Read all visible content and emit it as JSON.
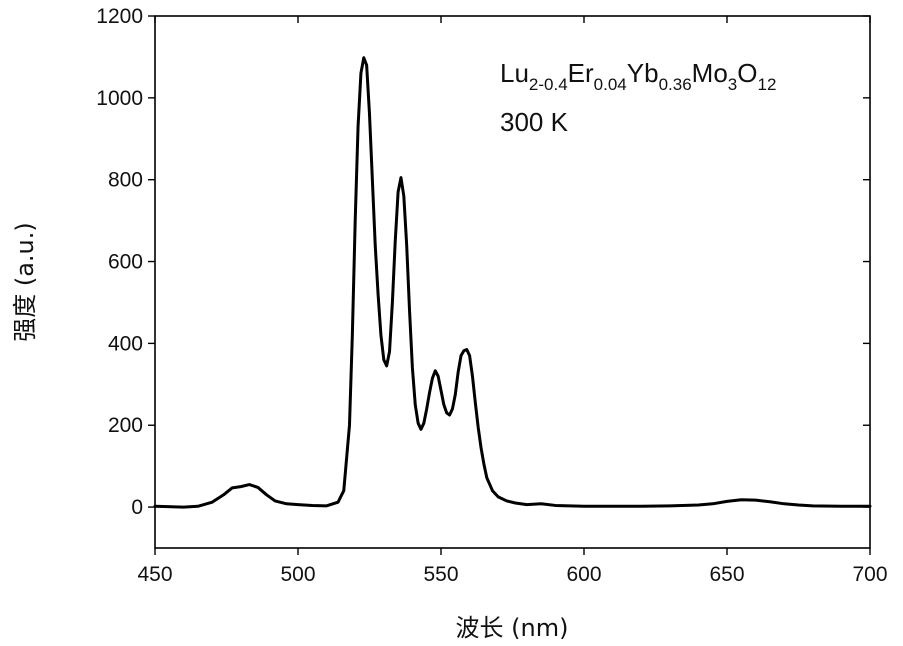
{
  "chart_data": {
    "type": "line",
    "xlabel": "波长 (nm)",
    "ylabel": "强度 (a.u.)",
    "xlim": [
      450,
      700
    ],
    "ylim": [
      -100,
      1200
    ],
    "x_ticks": [
      "450",
      "500",
      "550",
      "600",
      "650",
      "700"
    ],
    "y_ticks": [
      "0",
      "200",
      "400",
      "600",
      "800",
      "1000",
      "1200"
    ],
    "grid": false,
    "annotation": {
      "formula": [
        {
          "text": "Lu",
          "sub": false
        },
        {
          "text": "2-0.4",
          "sub": true
        },
        {
          "text": "Er",
          "sub": false
        },
        {
          "text": "0.04",
          "sub": true
        },
        {
          "text": "Yb",
          "sub": false
        },
        {
          "text": "0.36",
          "sub": true
        },
        {
          "text": "Mo",
          "sub": false
        },
        {
          "text": "3",
          "sub": true
        },
        {
          "text": "O",
          "sub": false
        },
        {
          "text": "12",
          "sub": true
        }
      ],
      "temperature": "300 K"
    },
    "series": [
      {
        "color": "#000000",
        "points": [
          [
            450,
            2
          ],
          [
            460,
            0
          ],
          [
            465,
            2
          ],
          [
            470,
            12
          ],
          [
            474,
            30
          ],
          [
            477,
            47
          ],
          [
            480,
            50
          ],
          [
            483,
            55
          ],
          [
            486,
            48
          ],
          [
            489,
            30
          ],
          [
            492,
            15
          ],
          [
            496,
            8
          ],
          [
            500,
            6
          ],
          [
            505,
            4
          ],
          [
            510,
            3
          ],
          [
            514,
            12
          ],
          [
            516,
            40
          ],
          [
            518,
            200
          ],
          [
            519,
            420
          ],
          [
            520,
            700
          ],
          [
            521,
            930
          ],
          [
            522,
            1060
          ],
          [
            523,
            1098
          ],
          [
            524,
            1080
          ],
          [
            525,
            960
          ],
          [
            526,
            800
          ],
          [
            527,
            640
          ],
          [
            528,
            520
          ],
          [
            529,
            420
          ],
          [
            530,
            360
          ],
          [
            531,
            345
          ],
          [
            532,
            380
          ],
          [
            533,
            500
          ],
          [
            534,
            650
          ],
          [
            535,
            770
          ],
          [
            536,
            805
          ],
          [
            537,
            760
          ],
          [
            538,
            640
          ],
          [
            539,
            480
          ],
          [
            540,
            340
          ],
          [
            541,
            250
          ],
          [
            542,
            205
          ],
          [
            543,
            190
          ],
          [
            544,
            205
          ],
          [
            545,
            240
          ],
          [
            546,
            280
          ],
          [
            547,
            315
          ],
          [
            548,
            333
          ],
          [
            549,
            320
          ],
          [
            550,
            285
          ],
          [
            551,
            250
          ],
          [
            552,
            230
          ],
          [
            553,
            225
          ],
          [
            554,
            240
          ],
          [
            555,
            275
          ],
          [
            556,
            330
          ],
          [
            557,
            370
          ],
          [
            558,
            382
          ],
          [
            559,
            385
          ],
          [
            560,
            370
          ],
          [
            561,
            320
          ],
          [
            562,
            255
          ],
          [
            563,
            195
          ],
          [
            564,
            145
          ],
          [
            565,
            105
          ],
          [
            566,
            72
          ],
          [
            568,
            40
          ],
          [
            570,
            25
          ],
          [
            573,
            15
          ],
          [
            576,
            10
          ],
          [
            580,
            6
          ],
          [
            585,
            8
          ],
          [
            590,
            4
          ],
          [
            595,
            3
          ],
          [
            600,
            2
          ],
          [
            610,
            2
          ],
          [
            620,
            2
          ],
          [
            630,
            3
          ],
          [
            640,
            5
          ],
          [
            645,
            8
          ],
          [
            650,
            14
          ],
          [
            655,
            18
          ],
          [
            660,
            17
          ],
          [
            665,
            13
          ],
          [
            670,
            8
          ],
          [
            675,
            5
          ],
          [
            680,
            3
          ],
          [
            690,
            2
          ],
          [
            700,
            2
          ]
        ]
      }
    ]
  }
}
